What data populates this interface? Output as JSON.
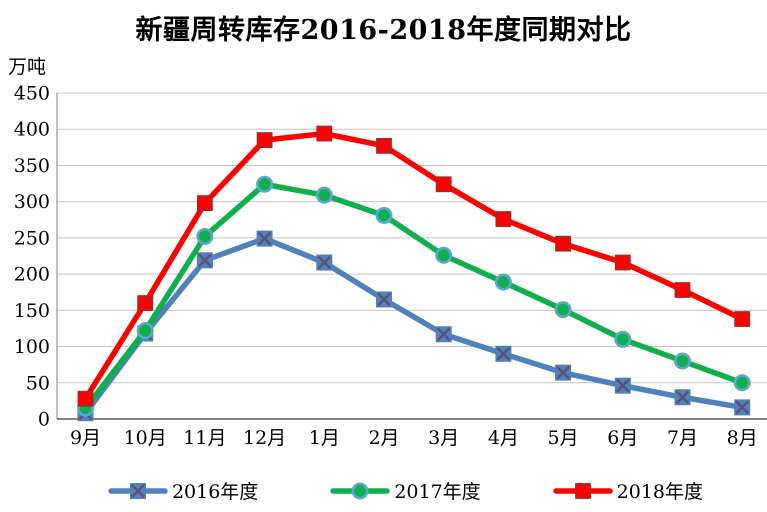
{
  "title": "新疆周转库存2016-2018年度同期对比",
  "y_unit": "万吨",
  "chart_data": {
    "type": "line",
    "categories": [
      "9月",
      "10月",
      "11月",
      "12月",
      "1月",
      "2月",
      "3月",
      "4月",
      "5月",
      "6月",
      "7月",
      "8月"
    ],
    "series": [
      {
        "name": "2016年度",
        "color": "#4F81BD",
        "marker": "square-x",
        "marker_border": "#5D5073",
        "values": [
          8,
          118,
          219,
          249,
          216,
          165,
          117,
          90,
          64,
          46,
          30,
          16
        ]
      },
      {
        "name": "2017年度",
        "color": "#0FAF4B",
        "marker": "circle",
        "marker_border": "#5BA7D1",
        "values": [
          15,
          122,
          252,
          324,
          309,
          281,
          226,
          189,
          151,
          110,
          80,
          50
        ]
      },
      {
        "name": "2018年度",
        "color": "#FF0000",
        "marker": "square",
        "marker_border": "#B0241A",
        "values": [
          28,
          160,
          298,
          385,
          394,
          377,
          324,
          276,
          242,
          216,
          178,
          138
        ]
      }
    ],
    "ylim": [
      0,
      450
    ],
    "ytick_step": 50,
    "grid": "horizontal",
    "legend_position": "bottom",
    "gridline_color": "#C6C6C6",
    "axis_color": "#808080"
  }
}
